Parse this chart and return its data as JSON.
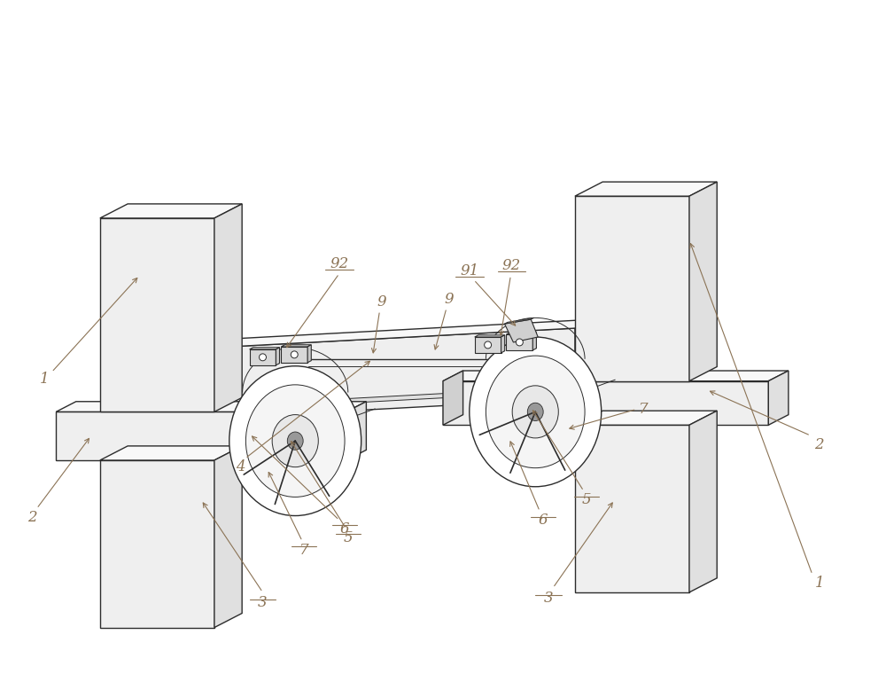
{
  "bg_color": "#ffffff",
  "lc": "#2c2c2c",
  "label_color": "#8B7355",
  "figsize": [
    10.0,
    7.6
  ],
  "dpi": 100,
  "lw": 1.0,
  "lw_thin": 0.7,
  "face_light": "#f8f8f8",
  "face_mid": "#efefef",
  "face_dark": "#e0e0e0",
  "face_darker": "#d0d0d0"
}
